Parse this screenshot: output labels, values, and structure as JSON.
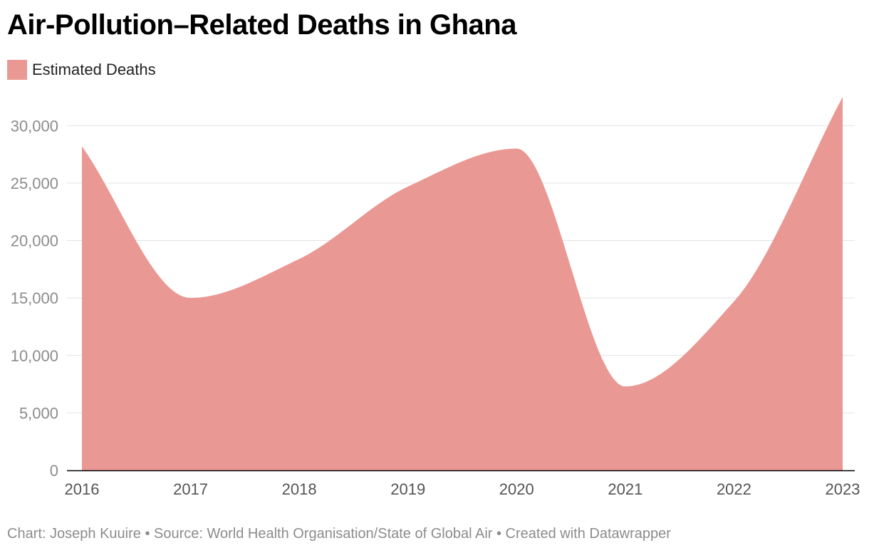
{
  "title": "Air-Pollution–Related Deaths in Ghana",
  "footer": "Chart: Joseph Kuuire • Source: World Health Organisation/State of Global Air • Created with Datawrapper",
  "colors": {
    "area": "#e99893",
    "grid": "#e3e3e3",
    "axis": "#000000",
    "tick_text": "#8c8c8c",
    "x_tick_text": "#555555"
  },
  "chart_data": {
    "type": "area",
    "title": "Air-Pollution–Related Deaths in Ghana",
    "xlabel": "",
    "ylabel": "",
    "x": [
      "2016",
      "2017",
      "2018",
      "2019",
      "2020",
      "2021",
      "2022",
      "2023"
    ],
    "series": [
      {
        "name": "Estimated Deaths",
        "values": [
          28200,
          15000,
          18400,
          24700,
          28000,
          7300,
          14700,
          32500
        ]
      }
    ],
    "ylim": [
      0,
      32500
    ],
    "yticks": [
      0,
      5000,
      10000,
      15000,
      20000,
      25000,
      30000
    ],
    "ytick_labels": [
      "0",
      "5,000",
      "10,000",
      "15,000",
      "20,000",
      "25,000",
      "30,000"
    ],
    "grid": true,
    "legend_position": "top-left",
    "curve": "smooth"
  }
}
